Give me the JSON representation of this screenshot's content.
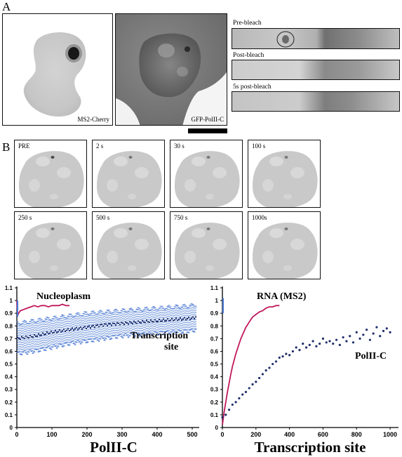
{
  "figure": {
    "panel_a_letter": "A",
    "panel_b_letter": "B",
    "micrographs": [
      {
        "label": "MS2-Cherry"
      },
      {
        "label": "GFP-PolII-C"
      }
    ],
    "frap_strips": [
      {
        "label": "Pre-bleach"
      },
      {
        "label": "Post-bleach"
      },
      {
        "label": "5s post-bleach"
      }
    ],
    "timelapse": [
      "PRE",
      "2 s",
      "30 s",
      "100 s",
      "250 s",
      "500 s",
      "750 s",
      "1000s"
    ]
  },
  "colors": {
    "nucleoplasm": "#c0185c",
    "rna": "#c0185c",
    "polii": "#1f2f6b",
    "transcription_band": "#4a78d2"
  },
  "chart_data": [
    {
      "type": "line",
      "title": "PolII-C",
      "xlabel": "",
      "ylabel": "",
      "xlim": [
        0,
        520
      ],
      "ylim": [
        0,
        1.1
      ],
      "xticks": [
        0,
        100,
        200,
        300,
        400,
        500
      ],
      "yticks": [
        0,
        0.1,
        0.2,
        0.3,
        0.4,
        0.5,
        0.6,
        0.7,
        0.8,
        0.9,
        1,
        1.1
      ],
      "series": [
        {
          "name": "Nucleoplasm",
          "color": "#c0185c",
          "x": [
            0,
            2,
            5,
            10,
            20,
            30,
            40,
            50,
            60,
            70,
            80,
            90,
            100,
            110,
            120,
            130,
            140,
            150
          ],
          "y": [
            1.0,
            0.88,
            0.9,
            0.92,
            0.93,
            0.94,
            0.95,
            0.96,
            0.95,
            0.96,
            0.96,
            0.95,
            0.96,
            0.96,
            0.96,
            0.97,
            0.96,
            0.96
          ]
        },
        {
          "name": "Transcription site",
          "color": "#1f2f6b",
          "x": [
            0,
            50,
            100,
            150,
            200,
            250,
            300,
            350,
            400,
            450,
            500,
            510
          ],
          "y": [
            0.7,
            0.72,
            0.75,
            0.77,
            0.79,
            0.81,
            0.82,
            0.83,
            0.84,
            0.85,
            0.86,
            0.87
          ],
          "error_low": [
            0.58,
            0.6,
            0.63,
            0.66,
            0.68,
            0.7,
            0.72,
            0.73,
            0.74,
            0.75,
            0.76,
            0.77
          ],
          "error_high": [
            0.82,
            0.84,
            0.86,
            0.88,
            0.9,
            0.91,
            0.92,
            0.93,
            0.94,
            0.95,
            0.96,
            0.97
          ]
        }
      ],
      "annotations": [
        "Nucleoplasm",
        "Transcription",
        "site"
      ]
    },
    {
      "type": "scatter",
      "title": "Transcription site",
      "xlabel": "",
      "ylabel": "",
      "xlim": [
        0,
        1050
      ],
      "ylim": [
        0,
        1.1
      ],
      "xticks": [
        0,
        200,
        400,
        600,
        800,
        1000
      ],
      "yticks": [
        0,
        0.1,
        0.2,
        0.3,
        0.4,
        0.5,
        0.6,
        0.7,
        0.8,
        0.9,
        1,
        1.1
      ],
      "series": [
        {
          "name": "RNA (MS2)",
          "color": "#c0185c",
          "x": [
            0,
            10,
            20,
            30,
            40,
            50,
            60,
            70,
            80,
            90,
            100,
            110,
            120,
            130,
            140,
            150,
            160,
            170,
            180,
            190,
            200,
            210,
            220,
            240,
            260,
            280,
            300,
            320,
            340
          ],
          "y": [
            0.02,
            0.12,
            0.2,
            0.28,
            0.35,
            0.42,
            0.48,
            0.53,
            0.58,
            0.62,
            0.66,
            0.7,
            0.73,
            0.76,
            0.79,
            0.81,
            0.83,
            0.85,
            0.87,
            0.88,
            0.89,
            0.9,
            0.91,
            0.92,
            0.94,
            0.95,
            0.95,
            0.96,
            0.96
          ]
        },
        {
          "name": "PolII-C",
          "color": "#1f2f6b",
          "x": [
            0,
            20,
            40,
            60,
            80,
            100,
            120,
            140,
            160,
            180,
            200,
            220,
            240,
            260,
            280,
            300,
            320,
            340,
            360,
            380,
            400,
            420,
            440,
            460,
            480,
            500,
            520,
            540,
            560,
            580,
            600,
            620,
            640,
            660,
            680,
            700,
            720,
            740,
            760,
            780,
            800,
            820,
            840,
            860,
            880,
            900,
            920,
            940,
            960,
            980,
            1000
          ],
          "y": [
            0.08,
            0.1,
            0.14,
            0.18,
            0.2,
            0.23,
            0.26,
            0.28,
            0.31,
            0.34,
            0.36,
            0.39,
            0.42,
            0.45,
            0.47,
            0.5,
            0.52,
            0.55,
            0.56,
            0.58,
            0.57,
            0.6,
            0.63,
            0.61,
            0.66,
            0.63,
            0.65,
            0.68,
            0.64,
            0.66,
            0.7,
            0.67,
            0.68,
            0.66,
            0.69,
            0.65,
            0.71,
            0.68,
            0.72,
            0.67,
            0.75,
            0.7,
            0.73,
            0.77,
            0.69,
            0.74,
            0.79,
            0.72,
            0.76,
            0.78,
            0.75
          ]
        }
      ],
      "annotations": [
        "RNA (MS2)",
        "PolII-C"
      ]
    }
  ]
}
